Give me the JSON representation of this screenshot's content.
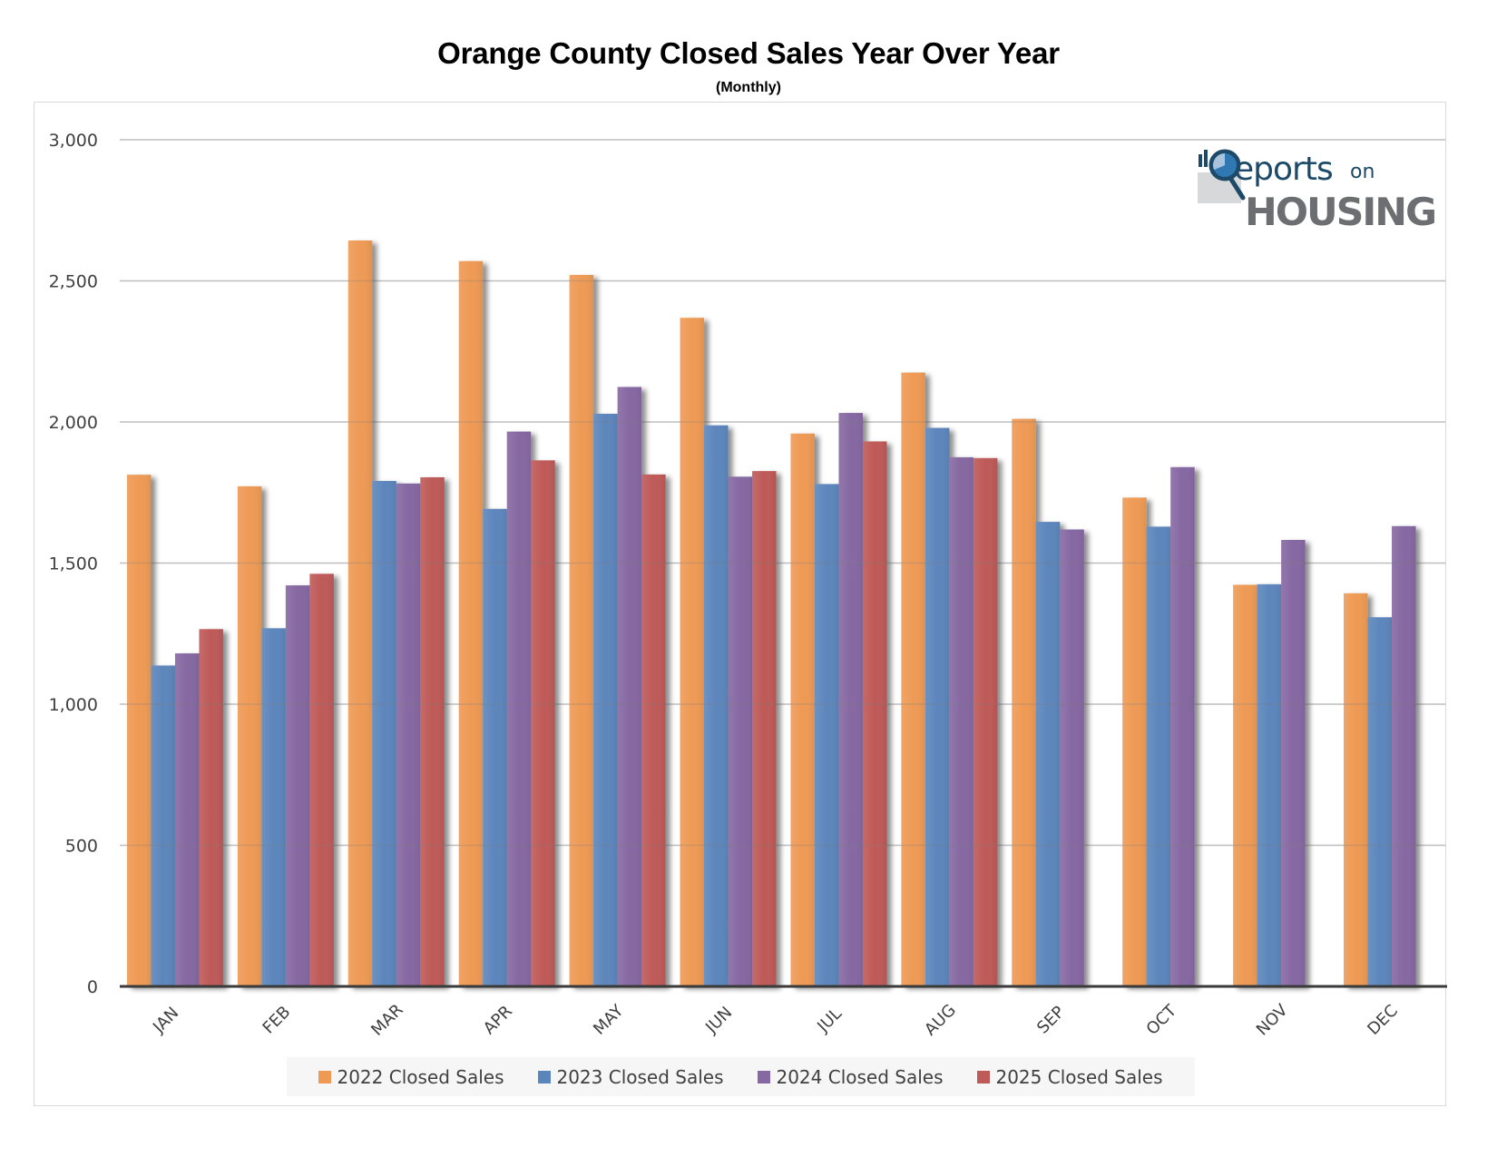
{
  "header": {
    "title": "Orange County Closed Sales Year Over Year",
    "subtitle": "(Monthly)"
  },
  "logo": {
    "text_reports": "eports",
    "text_on": "on",
    "text_housing": "HOUSING",
    "colors": {
      "navy": "#1d4a68",
      "blue": "#2f78b4",
      "gray": "#6d6e71",
      "light_gray": "#d7d8da"
    }
  },
  "chart_data": {
    "type": "bar",
    "title": "Orange County Closed Sales Year Over Year",
    "subtitle": "(Monthly)",
    "xlabel": "",
    "ylabel": "",
    "categories": [
      "JAN",
      "FEB",
      "MAR",
      "APR",
      "MAY",
      "JUN",
      "JUL",
      "AUG",
      "SEP",
      "OCT",
      "NOV",
      "DEC"
    ],
    "ylim": [
      0,
      3000
    ],
    "yticks": [
      0,
      500,
      1000,
      1500,
      2000,
      2500,
      3000
    ],
    "ytick_labels": [
      "0",
      "500",
      "1,000",
      "1,500",
      "2,000",
      "2,500",
      "3,000"
    ],
    "grid": true,
    "legend_position": "bottom",
    "series": [
      {
        "name": "2022 Closed Sales",
        "color": "#EE9A55",
        "values": [
          1813,
          1772,
          2643,
          2570,
          2521,
          2369,
          1959,
          2175,
          2011,
          1732,
          1423,
          1393
        ]
      },
      {
        "name": "2023 Closed Sales",
        "color": "#5B86BC",
        "values": [
          1137,
          1269,
          1791,
          1692,
          2029,
          1988,
          1780,
          1979,
          1646,
          1629,
          1425,
          1308
        ]
      },
      {
        "name": "2024 Closed Sales",
        "color": "#8668A2",
        "values": [
          1180,
          1421,
          1782,
          1966,
          2124,
          1806,
          2032,
          1875,
          1619,
          1840,
          1582,
          1631
        ]
      },
      {
        "name": "2025 Closed Sales",
        "color": "#BE5A58",
        "values": [
          1266,
          1462,
          1804,
          1864,
          1814,
          1826,
          1931,
          1872,
          null,
          null,
          null,
          null
        ]
      }
    ]
  }
}
